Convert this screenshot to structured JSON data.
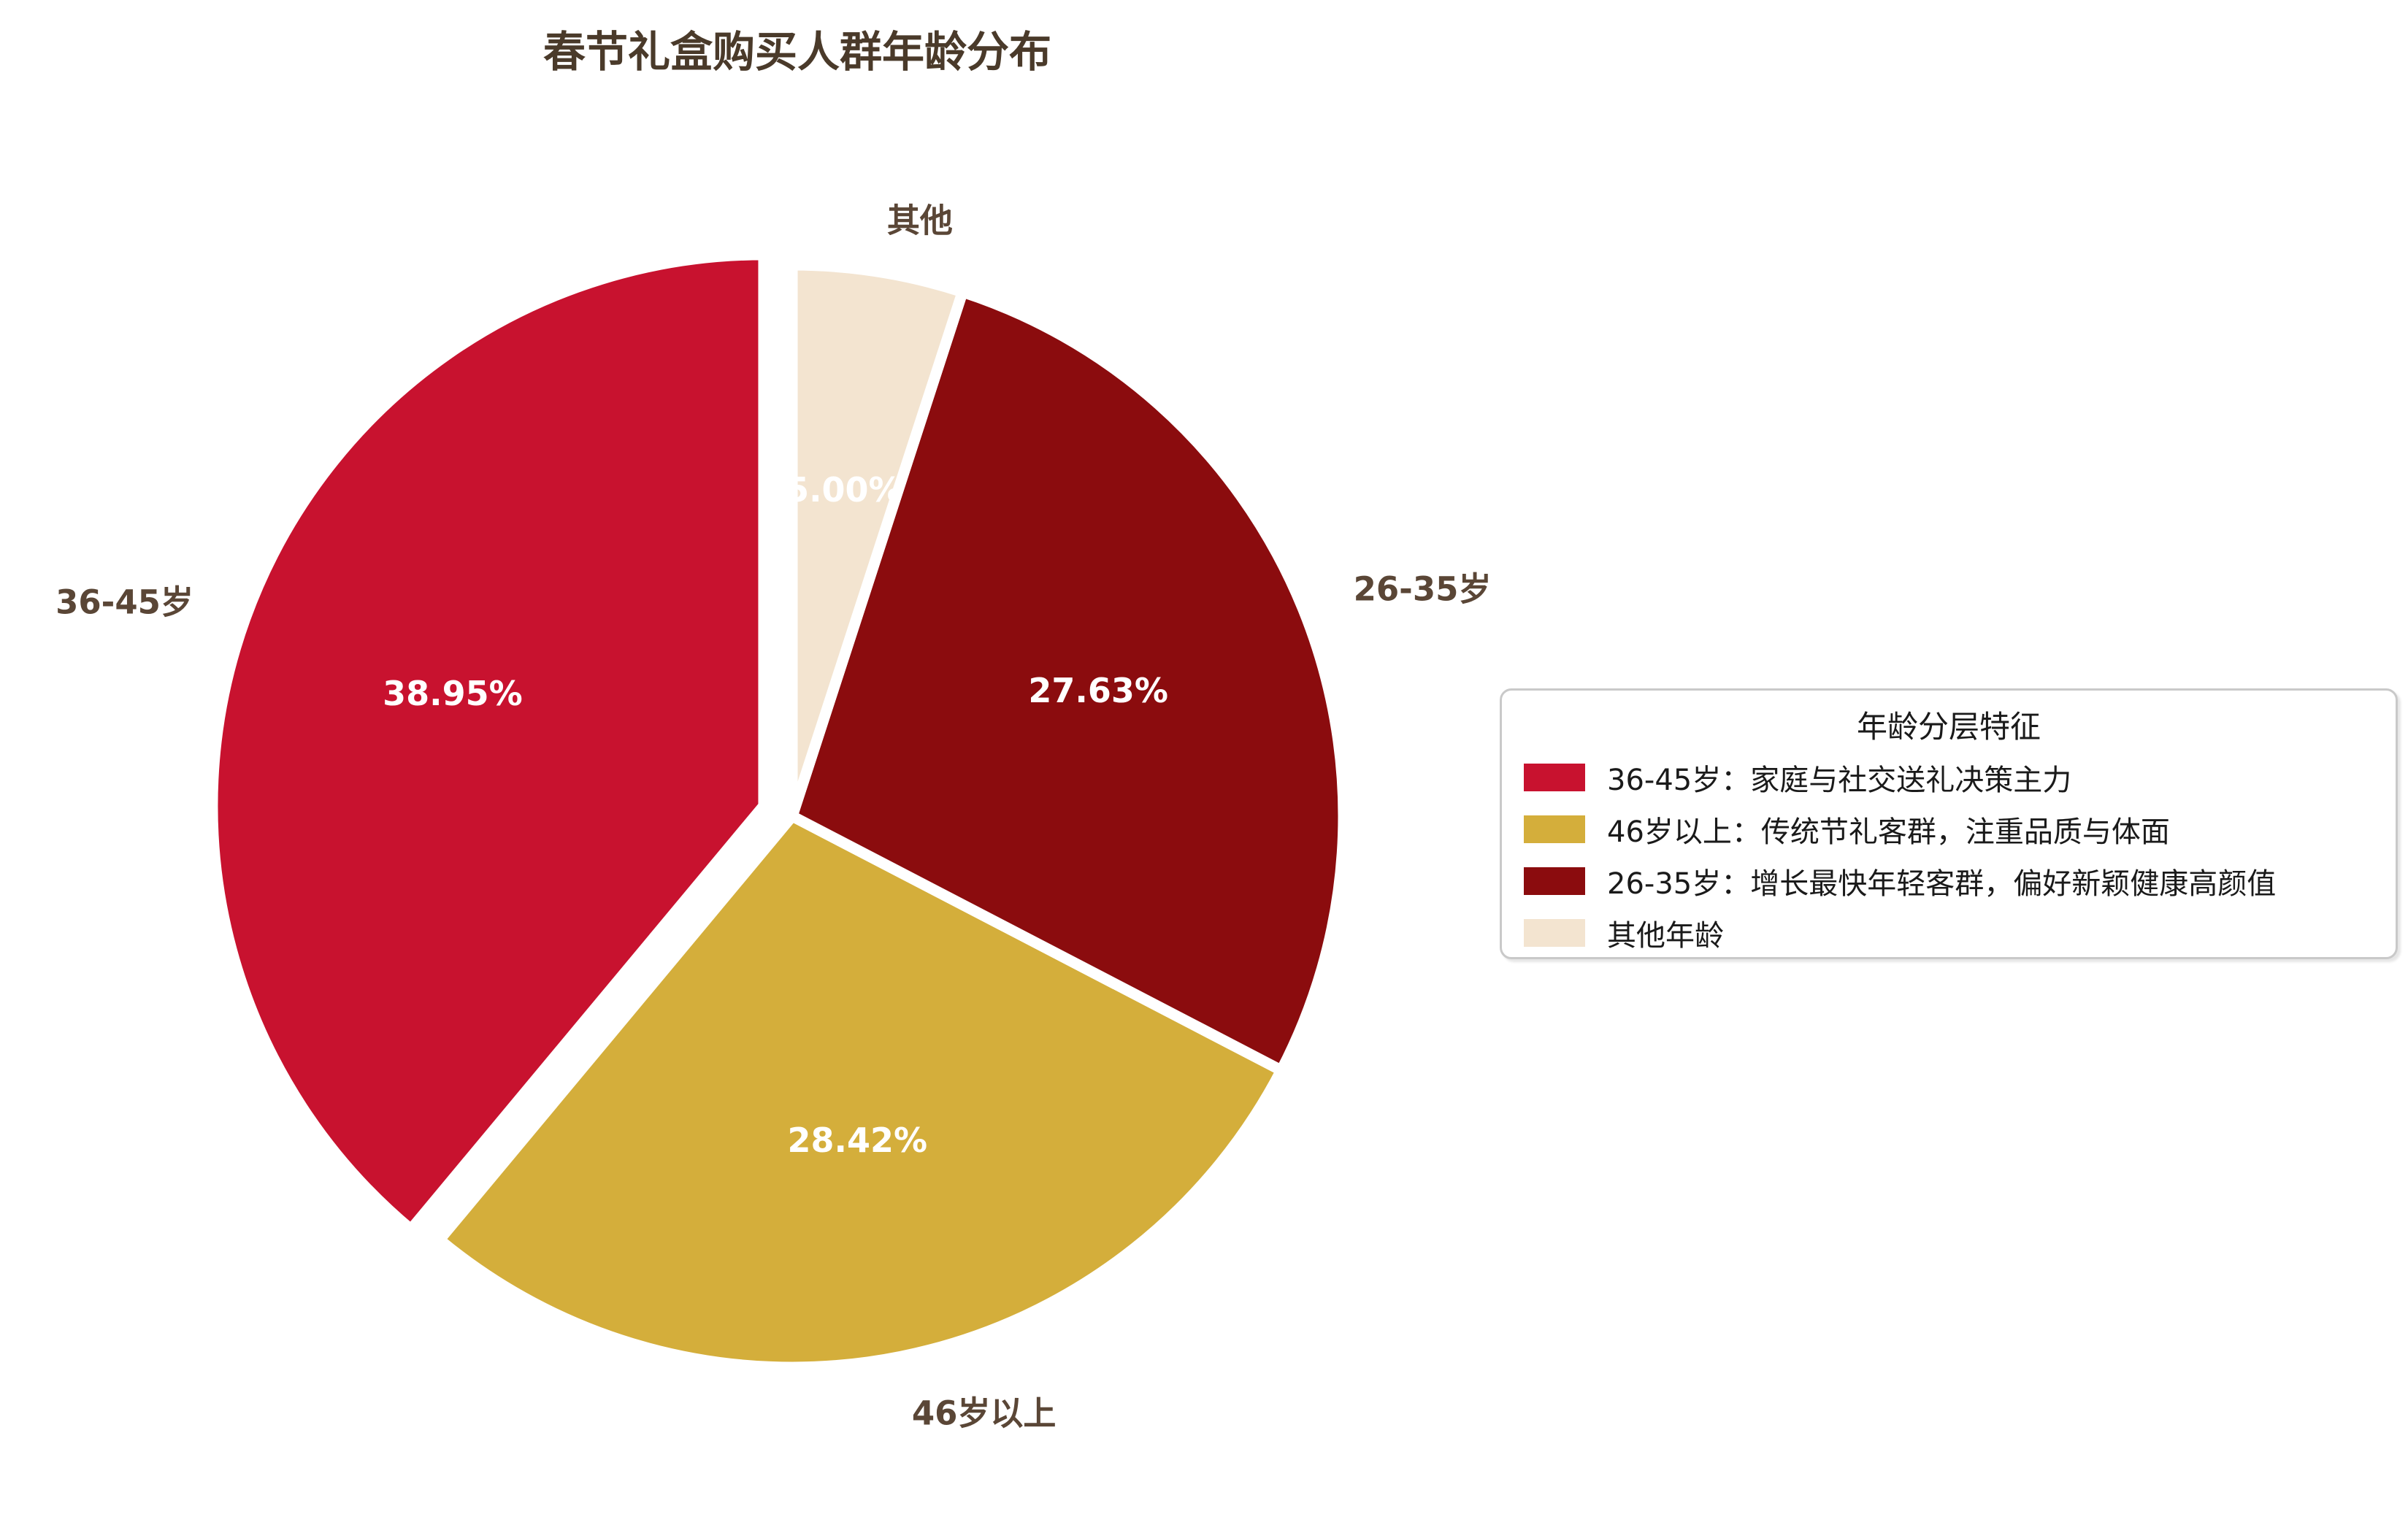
{
  "title": "春节礼盒购买人群年龄分布",
  "chart_data": {
    "type": "pie",
    "title": "春节礼盒购买人群年龄分布",
    "startangle": 90,
    "counterclockwise": true,
    "slices": [
      {
        "label": "36-45岁",
        "value": 38.95,
        "pct_label": "38.95%",
        "color": "#C8122F",
        "explode": 0.055
      },
      {
        "label": "46岁以上",
        "value": 28.42,
        "pct_label": "28.42%",
        "color": "#D4AE3B",
        "explode": 0
      },
      {
        "label": "26-35岁",
        "value": 27.63,
        "pct_label": "27.63%",
        "color": "#8B0C0E",
        "explode": 0
      },
      {
        "label": "其他",
        "value": 5.0,
        "pct_label": "5.00%",
        "color": "#F3E4D0",
        "explode": 0
      }
    ],
    "legend_position": "right",
    "wedge_border_color": "#ffffff"
  },
  "legend": {
    "title": "年龄分层特征",
    "items": [
      {
        "label": "36-45岁：家庭与社交送礼决策主力",
        "color": "#C8122F"
      },
      {
        "label": "46岁以上：传统节礼客群，注重品质与体面",
        "color": "#D4AE3B"
      },
      {
        "label": "26-35岁：增长最快年轻客群，偏好新颖健康高颜值",
        "color": "#8B0C0E"
      },
      {
        "label": "其他年龄",
        "color": "#F3E4D0"
      }
    ]
  },
  "colors": {
    "title_text": "#4A3A2A",
    "category_label_text": "#5A4636",
    "pct_label_text": "#ffffff",
    "legend_text": "#1A1A1A",
    "legend_border": "#C9C9C9",
    "background": "#ffffff"
  }
}
